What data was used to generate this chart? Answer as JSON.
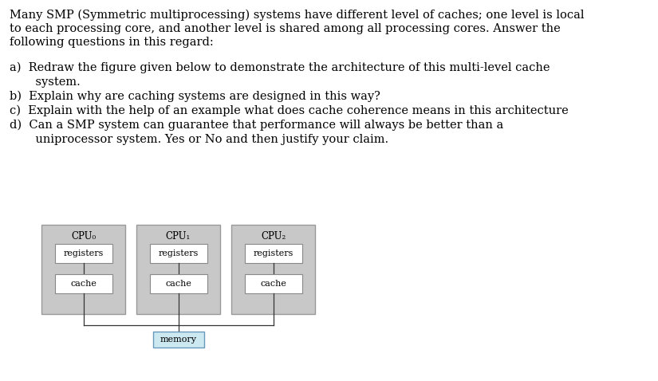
{
  "bg_color": "#ffffff",
  "text_color": "#000000",
  "para_line1": "Many SMP (Symmetric multiprocessing) systems have different level of caches; one level is local",
  "para_line2": "to each processing core, and another level is shared among all processing cores. Answer the",
  "para_line3": "following questions in this regard:",
  "item_a1": "a)  Redraw the figure given below to demonstrate the architecture of this multi-level cache",
  "item_a2": "       system.",
  "item_b": "b)  Explain why are caching systems are designed in this way?",
  "item_c": "c)  Explain with the help of an example what does cache coherence means in this architecture",
  "item_d1": "d)  Can a SMP system can guarantee that performance will always be better than a",
  "item_d2": "       uniprocessor system. Yes or No and then justify your claim.",
  "cpu_labels": [
    "CPU₀",
    "CPU₁",
    "CPU₂"
  ],
  "cpu_bg": "#c8c8c8",
  "box_bg": "#ffffff",
  "memory_bg": "#cce8f0",
  "memory_border": "#6699bb",
  "cpu_border": "#999999",
  "box_border": "#888888",
  "font_size_text": 10.5,
  "font_size_diagram": 8.5,
  "font_family": "DejaVu Serif"
}
